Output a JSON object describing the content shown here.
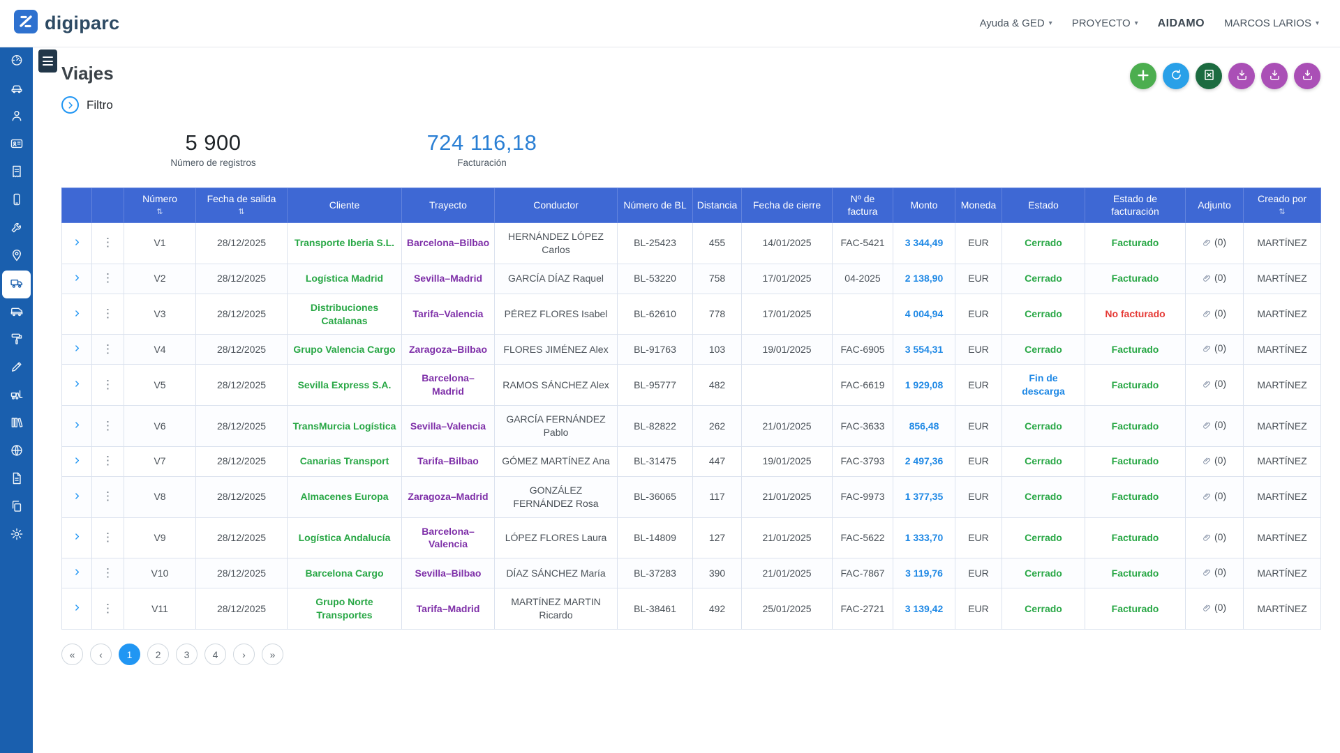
{
  "brand": {
    "name": "digiparc",
    "mark_color": "#2e71cf"
  },
  "topbar": {
    "menus": [
      {
        "label": "Ayuda & GED",
        "dropdown": true
      },
      {
        "label": "PROYECTO",
        "dropdown": true
      },
      {
        "label": "AIDAMO",
        "dropdown": false
      },
      {
        "label": "MARCOS LARIOS",
        "dropdown": true
      }
    ]
  },
  "sidebar": {
    "items": [
      {
        "icon": "dashboard-icon",
        "active": false
      },
      {
        "icon": "car-icon",
        "active": false
      },
      {
        "icon": "driver-icon",
        "active": false
      },
      {
        "icon": "id-card-icon",
        "active": false
      },
      {
        "icon": "invoice-icon",
        "active": false
      },
      {
        "icon": "device-icon",
        "active": false
      },
      {
        "icon": "wrench-icon",
        "active": false
      },
      {
        "icon": "map-pin-icon",
        "active": false
      },
      {
        "icon": "truck-icon",
        "active": true
      },
      {
        "icon": "vehicle-icon",
        "active": false
      },
      {
        "icon": "paint-roller-icon",
        "active": false
      },
      {
        "icon": "pencil-icon",
        "active": false
      },
      {
        "icon": "forklift-icon",
        "active": false
      },
      {
        "icon": "archive-icon",
        "active": false
      },
      {
        "icon": "globe-icon",
        "active": false
      },
      {
        "icon": "document-icon",
        "active": false
      },
      {
        "icon": "copy-icon",
        "active": false
      },
      {
        "icon": "settings-icon",
        "active": false
      }
    ]
  },
  "page": {
    "title": "Viajes",
    "filter_label": "Filtro",
    "stats": {
      "registros": {
        "value": "5 900",
        "label": "Número de registros"
      },
      "facturacion": {
        "value": "724 116,18",
        "label": "Facturación",
        "color": "#2a7fd4"
      }
    },
    "actions": [
      {
        "name": "add-button",
        "icon": "plus-icon",
        "color": "#4cae4f"
      },
      {
        "name": "refresh-button",
        "icon": "refresh-icon",
        "color": "#29a0e8"
      },
      {
        "name": "excel-export-button",
        "icon": "excel-icon",
        "color": "#1c6b40"
      },
      {
        "name": "download-button-1",
        "icon": "download-icon",
        "color": "#aa4fb6"
      },
      {
        "name": "download-button-2",
        "icon": "download-icon",
        "color": "#aa4fb6"
      },
      {
        "name": "download-button-3",
        "icon": "download-icon",
        "color": "#aa4fb6"
      }
    ]
  },
  "table": {
    "sort_icon": "⇅",
    "columns": [
      {
        "key": "expand",
        "label": "",
        "sortable": false
      },
      {
        "key": "menu",
        "label": "",
        "sortable": false
      },
      {
        "key": "numero",
        "label": "Número",
        "sortable": true
      },
      {
        "key": "fecha_salida",
        "label": "Fecha de salida",
        "sortable": true
      },
      {
        "key": "cliente",
        "label": "Cliente",
        "sortable": false
      },
      {
        "key": "trayecto",
        "label": "Trayecto",
        "sortable": false
      },
      {
        "key": "conductor",
        "label": "Conductor",
        "sortable": false
      },
      {
        "key": "numero_bl",
        "label": "Número de BL",
        "sortable": false
      },
      {
        "key": "distancia",
        "label": "Distancia",
        "sortable": false
      },
      {
        "key": "fecha_cierre",
        "label": "Fecha de cierre",
        "sortable": false
      },
      {
        "key": "num_factura",
        "label": "Nº de factura",
        "sortable": false
      },
      {
        "key": "monto",
        "label": "Monto",
        "sortable": false
      },
      {
        "key": "moneda",
        "label": "Moneda",
        "sortable": false
      },
      {
        "key": "estado",
        "label": "Estado",
        "sortable": false
      },
      {
        "key": "estado_fact",
        "label": "Estado de facturación",
        "sortable": false
      },
      {
        "key": "adjunto",
        "label": "Adjunto",
        "sortable": false
      },
      {
        "key": "creado_por",
        "label": "Creado por",
        "sortable": true
      }
    ],
    "rows": [
      {
        "numero": "V1",
        "fecha_salida": "28/12/2025",
        "cliente": "Transporte Iberia S.L.",
        "trayecto": "Barcelona–Bilbao",
        "conductor": "HERNÁNDEZ LÓPEZ Carlos",
        "numero_bl": "BL-25423",
        "distancia": "455",
        "fecha_cierre": "14/01/2025",
        "num_factura": "FAC-5421",
        "monto": "3 344,49",
        "moneda": "EUR",
        "estado": "Cerrado",
        "estado_type": "success",
        "estado_fact": "Facturado",
        "fact_type": "success",
        "adjunto": "(0)",
        "creado_por": "MARTÍNEZ"
      },
      {
        "numero": "V2",
        "fecha_salida": "28/12/2025",
        "cliente": "Logística Madrid",
        "trayecto": "Sevilla–Madrid",
        "conductor": "GARCÍA DÍAZ Raquel",
        "numero_bl": "BL-53220",
        "distancia": "758",
        "fecha_cierre": "17/01/2025",
        "num_factura": "04-2025",
        "monto": "2 138,90",
        "moneda": "EUR",
        "estado": "Cerrado",
        "estado_type": "success",
        "estado_fact": "Facturado",
        "fact_type": "success",
        "adjunto": "(0)",
        "creado_por": "MARTÍNEZ"
      },
      {
        "numero": "V3",
        "fecha_salida": "28/12/2025",
        "cliente": "Distribuciones Catalanas",
        "trayecto": "Tarifa–Valencia",
        "conductor": "PÉREZ FLORES Isabel",
        "numero_bl": "BL-62610",
        "distancia": "778",
        "fecha_cierre": "17/01/2025",
        "num_factura": "",
        "monto": "4 004,94",
        "moneda": "EUR",
        "estado": "Cerrado",
        "estado_type": "success",
        "estado_fact": "No facturado",
        "fact_type": "danger",
        "adjunto": "(0)",
        "creado_por": "MARTÍNEZ"
      },
      {
        "numero": "V4",
        "fecha_salida": "28/12/2025",
        "cliente": "Grupo Valencia Cargo",
        "trayecto": "Zaragoza–Bilbao",
        "conductor": "FLORES JIMÉNEZ Alex",
        "numero_bl": "BL-91763",
        "distancia": "103",
        "fecha_cierre": "19/01/2025",
        "num_factura": "FAC-6905",
        "monto": "3 554,31",
        "moneda": "EUR",
        "estado": "Cerrado",
        "estado_type": "success",
        "estado_fact": "Facturado",
        "fact_type": "success",
        "adjunto": "(0)",
        "creado_por": "MARTÍNEZ"
      },
      {
        "numero": "V5",
        "fecha_salida": "28/12/2025",
        "cliente": "Sevilla Express S.A.",
        "trayecto": "Barcelona–Madrid",
        "conductor": "RAMOS SÁNCHEZ Alex",
        "numero_bl": "BL-95777",
        "distancia": "482",
        "fecha_cierre": "",
        "num_factura": "FAC-6619",
        "monto": "1 929,08",
        "moneda": "EUR",
        "estado": "Fin de descarga",
        "estado_type": "info",
        "estado_fact": "Facturado",
        "fact_type": "success",
        "adjunto": "(0)",
        "creado_por": "MARTÍNEZ"
      },
      {
        "numero": "V6",
        "fecha_salida": "28/12/2025",
        "cliente": "TransMurcia Logística",
        "trayecto": "Sevilla–Valencia",
        "conductor": "GARCÍA FERNÁNDEZ Pablo",
        "numero_bl": "BL-82822",
        "distancia": "262",
        "fecha_cierre": "21/01/2025",
        "num_factura": "FAC-3633",
        "monto": "856,48",
        "moneda": "EUR",
        "estado": "Cerrado",
        "estado_type": "success",
        "estado_fact": "Facturado",
        "fact_type": "success",
        "adjunto": "(0)",
        "creado_por": "MARTÍNEZ"
      },
      {
        "numero": "V7",
        "fecha_salida": "28/12/2025",
        "cliente": "Canarias Transport",
        "trayecto": "Tarifa–Bilbao",
        "conductor": "GÓMEZ MARTÍNEZ Ana",
        "numero_bl": "BL-31475",
        "distancia": "447",
        "fecha_cierre": "19/01/2025",
        "num_factura": "FAC-3793",
        "monto": "2 497,36",
        "moneda": "EUR",
        "estado": "Cerrado",
        "estado_type": "success",
        "estado_fact": "Facturado",
        "fact_type": "success",
        "adjunto": "(0)",
        "creado_por": "MARTÍNEZ"
      },
      {
        "numero": "V8",
        "fecha_salida": "28/12/2025",
        "cliente": "Almacenes Europa",
        "trayecto": "Zaragoza–Madrid",
        "conductor": "GONZÁLEZ FERNÁNDEZ Rosa",
        "numero_bl": "BL-36065",
        "distancia": "117",
        "fecha_cierre": "21/01/2025",
        "num_factura": "FAC-9973",
        "monto": "1 377,35",
        "moneda": "EUR",
        "estado": "Cerrado",
        "estado_type": "success",
        "estado_fact": "Facturado",
        "fact_type": "success",
        "adjunto": "(0)",
        "creado_por": "MARTÍNEZ"
      },
      {
        "numero": "V9",
        "fecha_salida": "28/12/2025",
        "cliente": "Logística Andalucía",
        "trayecto": "Barcelona–Valencia",
        "conductor": "LÓPEZ FLORES Laura",
        "numero_bl": "BL-14809",
        "distancia": "127",
        "fecha_cierre": "21/01/2025",
        "num_factura": "FAC-5622",
        "monto": "1 333,70",
        "moneda": "EUR",
        "estado": "Cerrado",
        "estado_type": "success",
        "estado_fact": "Facturado",
        "fact_type": "success",
        "adjunto": "(0)",
        "creado_por": "MARTÍNEZ"
      },
      {
        "numero": "V10",
        "fecha_salida": "28/12/2025",
        "cliente": "Barcelona Cargo",
        "trayecto": "Sevilla–Bilbao",
        "conductor": "DÍAZ SÁNCHEZ María",
        "numero_bl": "BL-37283",
        "distancia": "390",
        "fecha_cierre": "21/01/2025",
        "num_factura": "FAC-7867",
        "monto": "3 119,76",
        "moneda": "EUR",
        "estado": "Cerrado",
        "estado_type": "success",
        "estado_fact": "Facturado",
        "fact_type": "success",
        "adjunto": "(0)",
        "creado_por": "MARTÍNEZ"
      },
      {
        "numero": "V11",
        "fecha_salida": "28/12/2025",
        "cliente": "Grupo Norte Transportes",
        "trayecto": "Tarifa–Madrid",
        "conductor": "MARTÍNEZ MARTIN Ricardo",
        "numero_bl": "BL-38461",
        "distancia": "492",
        "fecha_cierre": "25/01/2025",
        "num_factura": "FAC-2721",
        "monto": "3 139,42",
        "moneda": "EUR",
        "estado": "Cerrado",
        "estado_type": "success",
        "estado_fact": "Facturado",
        "fact_type": "success",
        "adjunto": "(0)",
        "creado_por": "MARTÍNEZ"
      }
    ]
  },
  "pagination": {
    "items": [
      {
        "label": "«",
        "name": "first",
        "active": false
      },
      {
        "label": "‹",
        "name": "prev",
        "active": false
      },
      {
        "label": "1",
        "name": "page-1",
        "active": true
      },
      {
        "label": "2",
        "name": "page-2",
        "active": false
      },
      {
        "label": "3",
        "name": "page-3",
        "active": false
      },
      {
        "label": "4",
        "name": "page-4",
        "active": false
      },
      {
        "label": "›",
        "name": "next",
        "active": false
      },
      {
        "label": "»",
        "name": "last",
        "active": false
      }
    ]
  }
}
